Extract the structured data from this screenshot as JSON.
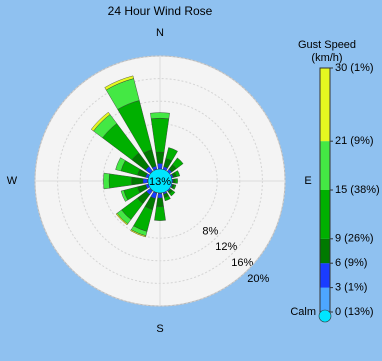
{
  "chart_data": {
    "type": "windrose",
    "title": "24 Hour Wind Rose",
    "legend_title": [
      "Gust Speed",
      "(km/h)"
    ],
    "categories": [
      "N",
      null,
      null,
      null,
      "E",
      null,
      null,
      null,
      "S",
      null,
      null,
      null,
      "W",
      null,
      null,
      null
    ],
    "calm": {
      "label": "Calm",
      "value": 13,
      "value_label": "13%",
      "color": "#00e5ff"
    },
    "rlim": [
      0,
      20
    ],
    "rticks": [
      {
        "value": 8,
        "label": "8%"
      },
      {
        "value": 12,
        "label": "12%"
      },
      {
        "value": 16,
        "label": "16%"
      },
      {
        "value": 20,
        "label": "20%"
      }
    ],
    "clim": [
      0,
      30
    ],
    "cticks": [
      {
        "value": 0,
        "label": "0 (13%)"
      },
      {
        "value": 3,
        "label": "3 (1%)"
      },
      {
        "value": 6,
        "label": "6 (9%)"
      },
      {
        "value": 9,
        "label": "9 (26%)"
      },
      {
        "value": 15,
        "label": "15 (38%)"
      },
      {
        "value": 21,
        "label": "21 (9%)"
      },
      {
        "value": 30,
        "label": "30 (1%)"
      }
    ],
    "series": [
      {
        "color": "#4da6ff",
        "values": [
          0,
          0,
          0,
          0,
          0,
          0,
          0,
          0,
          0.1,
          0.1,
          0.1,
          0,
          0.1,
          0,
          0.1,
          0.1
        ]
      },
      {
        "color": "#1a3cff",
        "values": [
          1,
          0.5,
          0.5,
          0.3,
          0.2,
          0.2,
          0.2,
          0.3,
          0.8,
          1,
          0.8,
          0.5,
          0.8,
          0.5,
          1,
          0.5
        ]
      },
      {
        "color": "#007a00",
        "values": [
          2,
          1.5,
          1,
          0.6,
          0.4,
          0.3,
          0.5,
          0.6,
          1.5,
          2,
          2,
          1.5,
          2,
          1.5,
          3,
          3
        ]
      },
      {
        "color": "#00b000",
        "values": [
          6,
          2,
          1.5,
          0.6,
          0.4,
          0.3,
          0.5,
          0.6,
          2.5,
          4,
          3.5,
          2.5,
          4,
          3,
          6.5,
          9
        ]
      },
      {
        "color": "#44e844",
        "values": [
          1,
          0,
          0,
          0,
          0,
          0,
          0,
          0,
          0,
          0.8,
          1,
          0.5,
          1,
          1,
          2,
          4
        ]
      },
      {
        "color": "#e4f820",
        "values": [
          0,
          0,
          0,
          0,
          0,
          0,
          0,
          0,
          0,
          0.2,
          0.2,
          0,
          0,
          0,
          0.5,
          0.5
        ]
      }
    ]
  }
}
